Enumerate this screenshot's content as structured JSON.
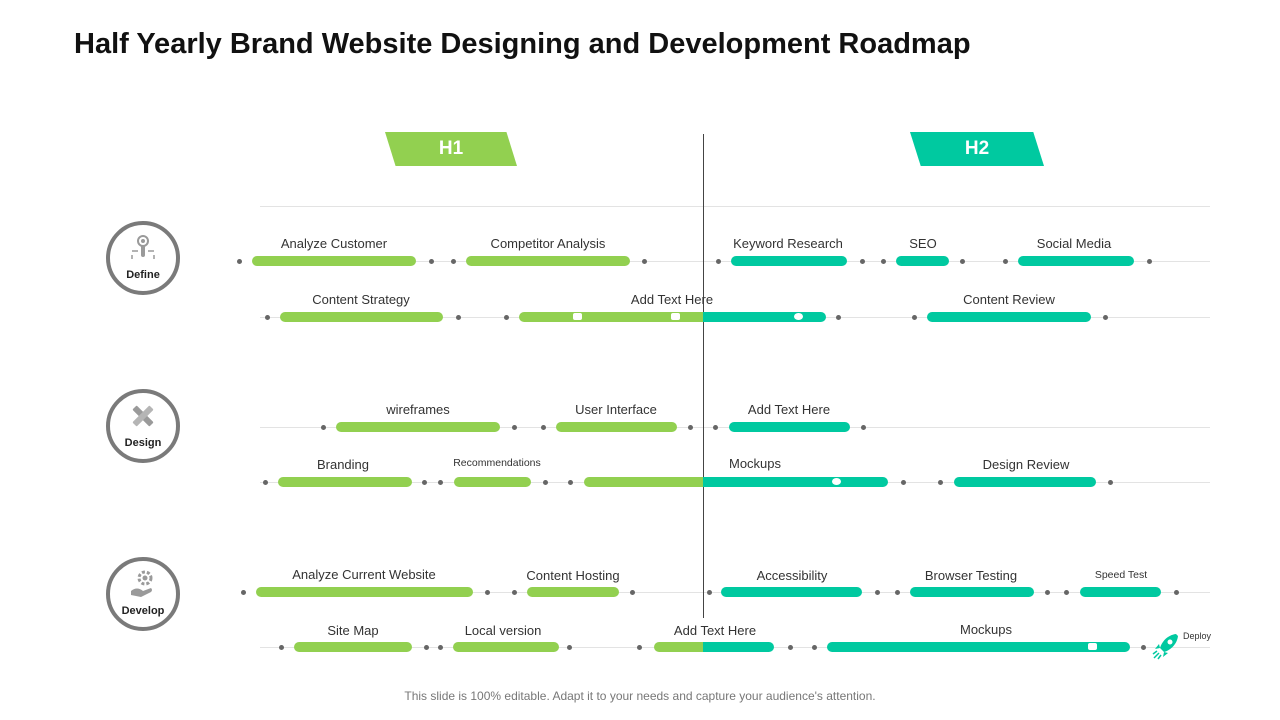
{
  "title": "Half Yearly Brand Website Designing and Development Roadmap",
  "phases": {
    "h1": "H1",
    "h2": "H2"
  },
  "categories": [
    {
      "label": "Define",
      "icon": "touch-gear-icon"
    },
    {
      "label": "Design",
      "icon": "pencil-ruler-icon"
    },
    {
      "label": "Develop",
      "icon": "hand-gear-icon"
    }
  ],
  "tasks": {
    "analyze_customer": "Analyze Customer",
    "competitor_analysis": "Competitor Analysis",
    "keyword_research": "Keyword Research",
    "seo": "SEO",
    "social_media": "Social Media",
    "content_strategy": "Content Strategy",
    "add_text_1": "Add Text Here",
    "content_review": "Content Review",
    "wireframes": "wireframes",
    "user_interface": "User Interface",
    "add_text_2": "Add Text Here",
    "branding": "Branding",
    "recommendations": "Recommendations",
    "mockups_1": "Mockups",
    "design_review": "Design Review",
    "analyze_current_website": "Analyze Current Website",
    "content_hosting": "Content Hosting",
    "accessibility": "Accessibility",
    "browser_testing": "Browser Testing",
    "speed_test": "Speed Test",
    "site_map": "Site Map",
    "local_version": "Local version",
    "add_text_3": "Add Text Here",
    "mockups_2": "Mockups"
  },
  "deploy": "Deploy",
  "footer": "This slide is 100% editable. Adapt it to your needs and capture your audience's attention.",
  "colors": {
    "h1": "#92d050",
    "h2": "#00c9a0",
    "outline": "#7a7a7a"
  }
}
